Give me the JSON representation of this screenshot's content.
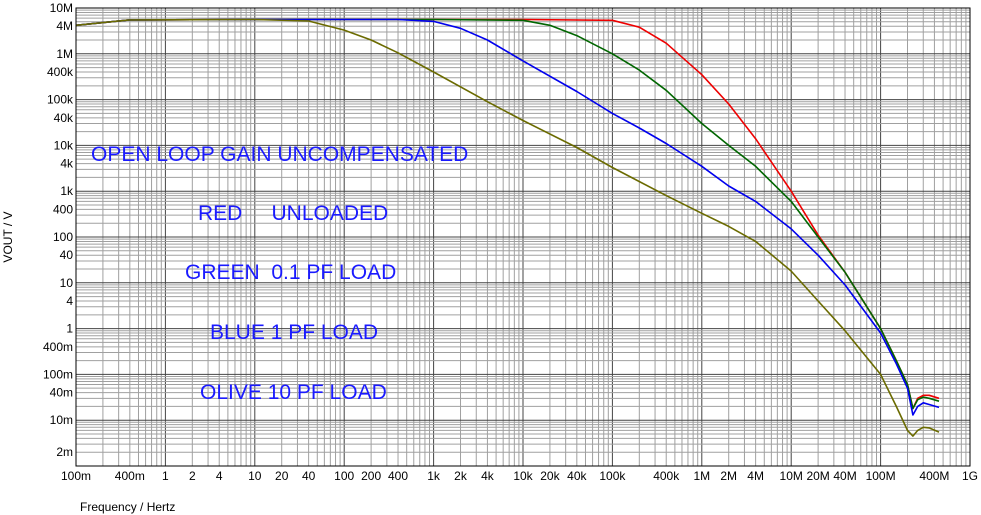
{
  "chart_data": {
    "type": "line",
    "xlabel": "Frequency / Hertz",
    "ylabel": "VOUT / V",
    "xscale": "log",
    "yscale": "log",
    "xlim": [
      0.1,
      1000000000
    ],
    "ylim": [
      0.001,
      10000000
    ],
    "grid": true,
    "x_tick_labels": [
      {
        "v": 0.1,
        "t": "100m"
      },
      {
        "v": 0.4,
        "t": "400m"
      },
      {
        "v": 1,
        "t": "1"
      },
      {
        "v": 2,
        "t": "2"
      },
      {
        "v": 4,
        "t": "4"
      },
      {
        "v": 10,
        "t": "10"
      },
      {
        "v": 20,
        "t": "20"
      },
      {
        "v": 40,
        "t": "40"
      },
      {
        "v": 100,
        "t": "100"
      },
      {
        "v": 200,
        "t": "200"
      },
      {
        "v": 400,
        "t": "400"
      },
      {
        "v": 1000,
        "t": "1k"
      },
      {
        "v": 2000,
        "t": "2k"
      },
      {
        "v": 4000,
        "t": "4k"
      },
      {
        "v": 10000,
        "t": "10k"
      },
      {
        "v": 20000,
        "t": "20k"
      },
      {
        "v": 40000,
        "t": "40k"
      },
      {
        "v": 100000,
        "t": "100k"
      },
      {
        "v": 400000,
        "t": "400k"
      },
      {
        "v": 1000000,
        "t": "1M"
      },
      {
        "v": 2000000,
        "t": "2M"
      },
      {
        "v": 4000000,
        "t": "4M"
      },
      {
        "v": 10000000,
        "t": "10M"
      },
      {
        "v": 20000000,
        "t": "20M"
      },
      {
        "v": 40000000,
        "t": "40M"
      },
      {
        "v": 100000000,
        "t": "100M"
      },
      {
        "v": 400000000,
        "t": "400M"
      },
      {
        "v": 1000000000,
        "t": "1G"
      }
    ],
    "y_tick_labels": [
      {
        "v": 10000000,
        "t": "10M"
      },
      {
        "v": 4000000,
        "t": "4M"
      },
      {
        "v": 1000000,
        "t": "1M"
      },
      {
        "v": 400000,
        "t": "400k"
      },
      {
        "v": 100000,
        "t": "100k"
      },
      {
        "v": 40000,
        "t": "40k"
      },
      {
        "v": 10000,
        "t": "10k"
      },
      {
        "v": 4000,
        "t": "4k"
      },
      {
        "v": 1000,
        "t": "1k"
      },
      {
        "v": 400,
        "t": "400"
      },
      {
        "v": 100,
        "t": "100"
      },
      {
        "v": 40,
        "t": "40"
      },
      {
        "v": 10,
        "t": "10"
      },
      {
        "v": 4,
        "t": "4"
      },
      {
        "v": 1,
        "t": "1"
      },
      {
        "v": 0.4,
        "t": "400m"
      },
      {
        "v": 0.1,
        "t": "100m"
      },
      {
        "v": 0.04,
        "t": "40m"
      },
      {
        "v": 0.01,
        "t": "10m"
      },
      {
        "v": 0.002,
        "t": "2m"
      }
    ],
    "annotations": [
      "OPEN LOOP GAIN UNCOMPENSATED",
      "RED     UNLOADED",
      "GREEN  0.1 PF LOAD",
      "BLUE 1 PF LOAD",
      "OLIVE 10 PF LOAD"
    ],
    "series": [
      {
        "color": "#ee0000",
        "points": [
          [
            0.1,
            4200000
          ],
          [
            0.4,
            5500000
          ],
          [
            10,
            5600000
          ],
          [
            10000,
            5600000
          ],
          [
            100000,
            5400000
          ],
          [
            200000,
            3800000
          ],
          [
            400000,
            1700000
          ],
          [
            1000000,
            350000
          ],
          [
            2000000,
            80000
          ],
          [
            4000000,
            14000
          ],
          [
            10000000,
            1000
          ],
          [
            20000000,
            110
          ],
          [
            40000000,
            17
          ],
          [
            100000000,
            1
          ],
          [
            150000000,
            0.2
          ],
          [
            200000000,
            0.06
          ],
          [
            230000000,
            0.018
          ],
          [
            260000000,
            0.03
          ],
          [
            300000000,
            0.035
          ],
          [
            350000000,
            0.035
          ],
          [
            450000000,
            0.03
          ]
        ]
      },
      {
        "color": "#006600",
        "points": [
          [
            0.1,
            4200000
          ],
          [
            0.4,
            5500000
          ],
          [
            10,
            5600000
          ],
          [
            1000,
            5600000
          ],
          [
            10000,
            5400000
          ],
          [
            20000,
            4200000
          ],
          [
            40000,
            2500000
          ],
          [
            100000,
            1000000
          ],
          [
            200000,
            440000
          ],
          [
            400000,
            160000
          ],
          [
            1000000,
            30000
          ],
          [
            2000000,
            10000
          ],
          [
            4000000,
            3500
          ],
          [
            10000000,
            600
          ],
          [
            20000000,
            100
          ],
          [
            40000000,
            17
          ],
          [
            100000000,
            1
          ],
          [
            150000000,
            0.2
          ],
          [
            200000000,
            0.06
          ],
          [
            230000000,
            0.018
          ],
          [
            260000000,
            0.028
          ],
          [
            300000000,
            0.032
          ],
          [
            350000000,
            0.03
          ],
          [
            450000000,
            0.026
          ]
        ]
      },
      {
        "color": "#0000ee",
        "points": [
          [
            0.1,
            4200000
          ],
          [
            0.4,
            5500000
          ],
          [
            10,
            5600000
          ],
          [
            400,
            5600000
          ],
          [
            1000,
            5100000
          ],
          [
            2000,
            3600000
          ],
          [
            4000,
            2000000
          ],
          [
            10000,
            700000
          ],
          [
            40000,
            150000
          ],
          [
            100000,
            50000
          ],
          [
            200000,
            24000
          ],
          [
            400000,
            11000
          ],
          [
            1000000,
            3500
          ],
          [
            2000000,
            1300
          ],
          [
            4000000,
            600
          ],
          [
            10000000,
            150
          ],
          [
            20000000,
            40
          ],
          [
            40000000,
            9
          ],
          [
            100000000,
            0.8
          ],
          [
            150000000,
            0.17
          ],
          [
            200000000,
            0.05
          ],
          [
            230000000,
            0.013
          ],
          [
            260000000,
            0.02
          ],
          [
            300000000,
            0.024
          ],
          [
            350000000,
            0.022
          ],
          [
            450000000,
            0.019
          ]
        ]
      },
      {
        "color": "#6b6b00",
        "points": [
          [
            0.1,
            4200000
          ],
          [
            0.4,
            5500000
          ],
          [
            10,
            5600000
          ],
          [
            40,
            5200000
          ],
          [
            100,
            3300000
          ],
          [
            200,
            2000000
          ],
          [
            400,
            1050000
          ],
          [
            1000,
            400000
          ],
          [
            4000,
            90000
          ],
          [
            10000,
            35000
          ],
          [
            40000,
            9000
          ],
          [
            100000,
            3300
          ],
          [
            400000,
            800
          ],
          [
            1000000,
            330
          ],
          [
            2000000,
            170
          ],
          [
            4000000,
            80
          ],
          [
            10000000,
            18
          ],
          [
            20000000,
            4
          ],
          [
            40000000,
            0.9
          ],
          [
            100000000,
            0.1
          ],
          [
            150000000,
            0.02
          ],
          [
            200000000,
            0.006
          ],
          [
            230000000,
            0.0045
          ],
          [
            260000000,
            0.006
          ],
          [
            300000000,
            0.007
          ],
          [
            350000000,
            0.0068
          ],
          [
            450000000,
            0.0055
          ]
        ]
      }
    ]
  }
}
